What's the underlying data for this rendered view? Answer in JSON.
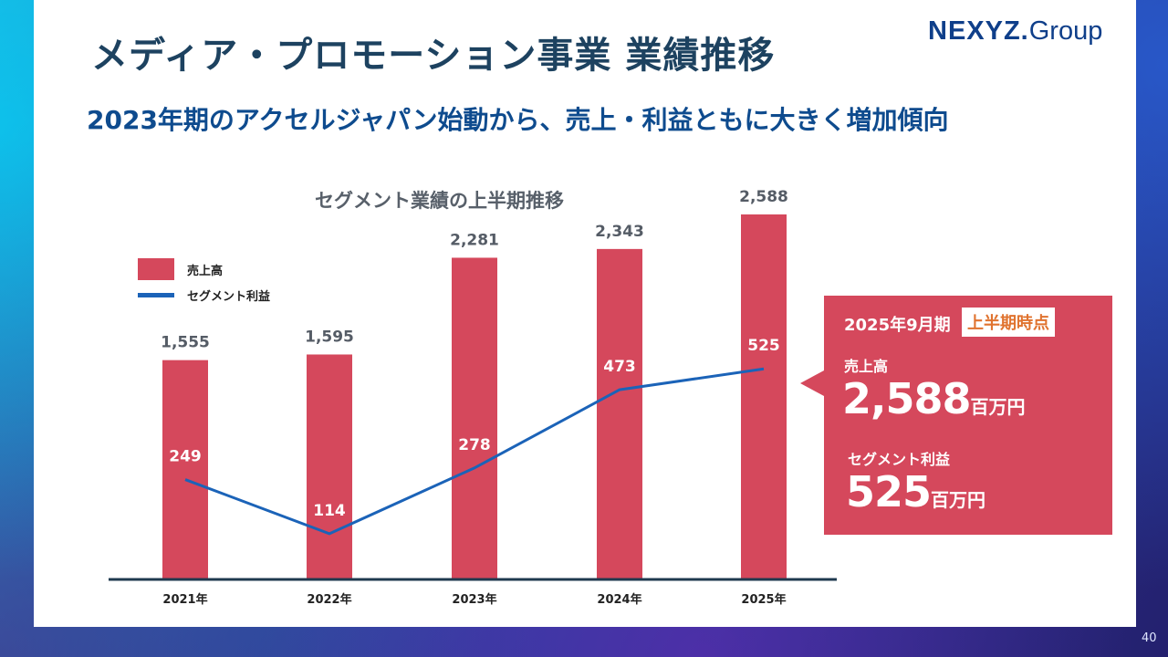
{
  "header": {
    "title": "メディア・プロモーション事業 業績推移",
    "logo_main": "NEXYZ.",
    "logo_sub": "Group"
  },
  "subtitle": "2023年期のアクセルジャパン始動から、売上・利益ともに大きく増加傾向",
  "chart_data": {
    "type": "bar",
    "title": "セグメント業績の上半期推移",
    "categories": [
      "2021年",
      "2022年",
      "2023年",
      "2024年",
      "2025年"
    ],
    "series": [
      {
        "name": "売上高",
        "type": "bar",
        "color": "#d5485c",
        "values": [
          1555,
          1595,
          2281,
          2343,
          2588
        ]
      },
      {
        "name": "セグメント利益",
        "type": "line",
        "color": "#1b63b8",
        "values": [
          249,
          114,
          278,
          473,
          525
        ]
      }
    ],
    "bar_labels": [
      "1,555",
      "1,595",
      "2,281",
      "2,343",
      "2,588"
    ],
    "line_labels": [
      "249",
      "114",
      "278",
      "473",
      "525"
    ],
    "bar_ylim": [
      0,
      2588
    ],
    "line_ylim": [
      0,
      910
    ],
    "legend_position": "top-left"
  },
  "callout": {
    "period": "2025年9月期",
    "badge": "上半期時点",
    "sales_label": "売上高",
    "sales_value": "2,588",
    "sales_unit": "百万円",
    "profit_label": "セグメント利益",
    "profit_value": "525",
    "profit_unit": "百万円"
  },
  "page_number": "40"
}
